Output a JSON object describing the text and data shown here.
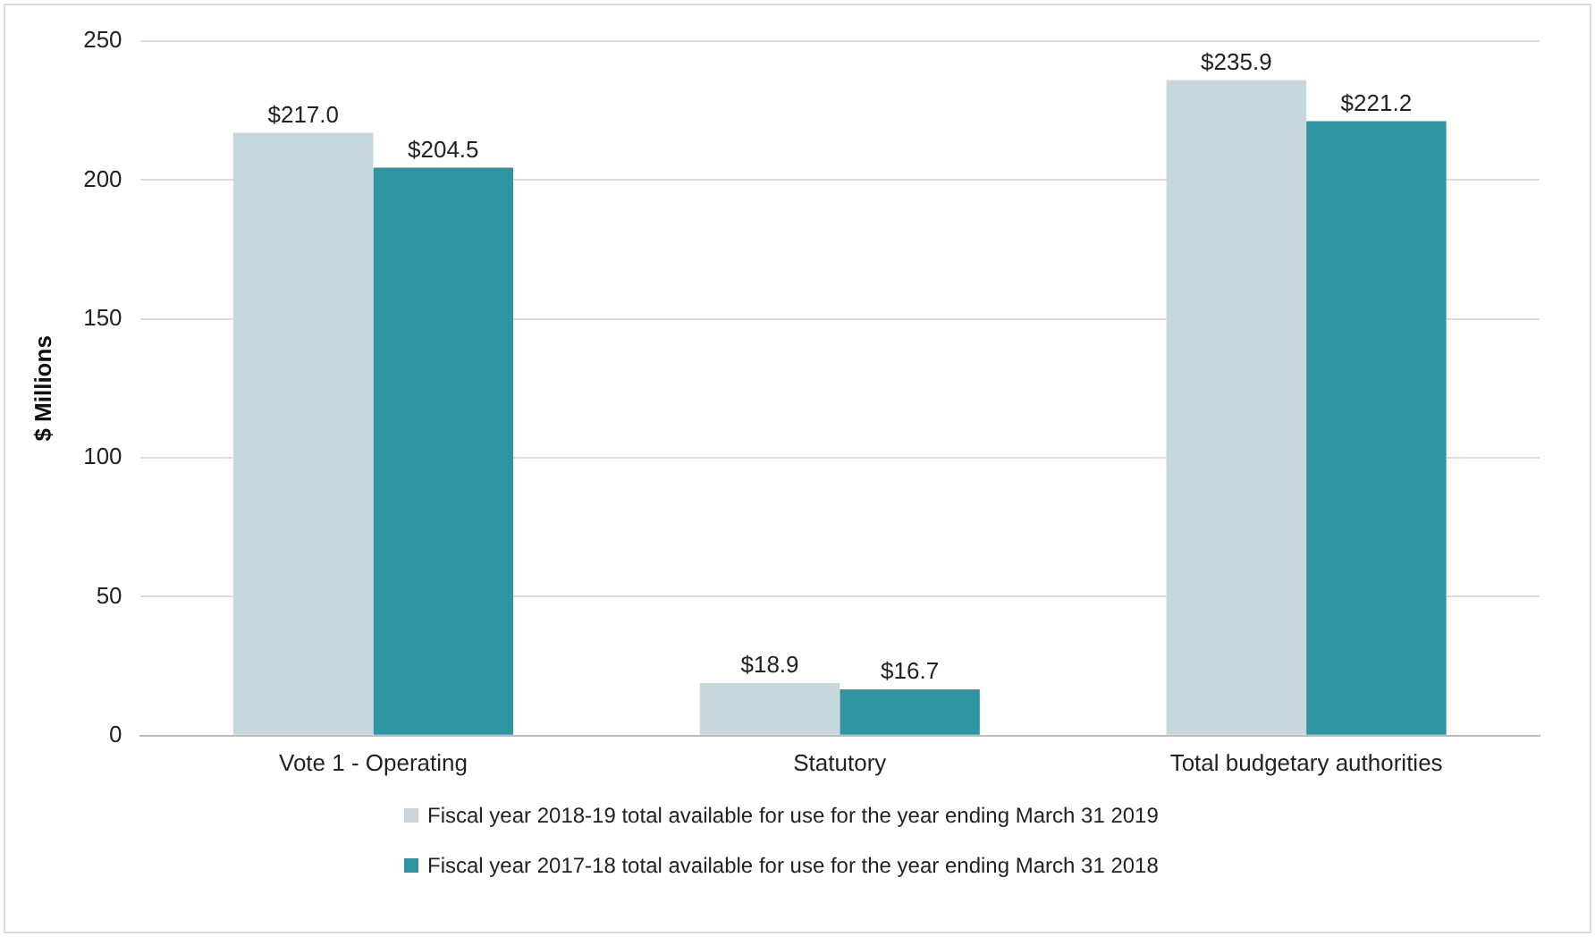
{
  "chart_data": {
    "type": "bar",
    "ylabel": "$ Millions",
    "categories": [
      "Vote 1 - Operating",
      "Statutory",
      "Total budgetary authorities"
    ],
    "series": [
      {
        "name": "Fiscal year 2018-19 total available for use for the year ending March 31 2019",
        "color": "#c7d8dc",
        "values": [
          217.0,
          18.9,
          235.9
        ],
        "value_labels": [
          "$217.0",
          "$18.9",
          "$235.9"
        ]
      },
      {
        "name": "Fiscal year 2017-18 total available for use for the year ending March 31 2018",
        "color": "#2f95a2",
        "values": [
          204.5,
          16.7,
          221.2
        ],
        "value_labels": [
          "$204.5",
          "$16.7",
          "$221.2"
        ]
      }
    ],
    "ylim": [
      0,
      250
    ],
    "yticks": [
      0,
      50,
      100,
      150,
      200,
      250
    ],
    "grid": "y",
    "legend": "bottom"
  }
}
